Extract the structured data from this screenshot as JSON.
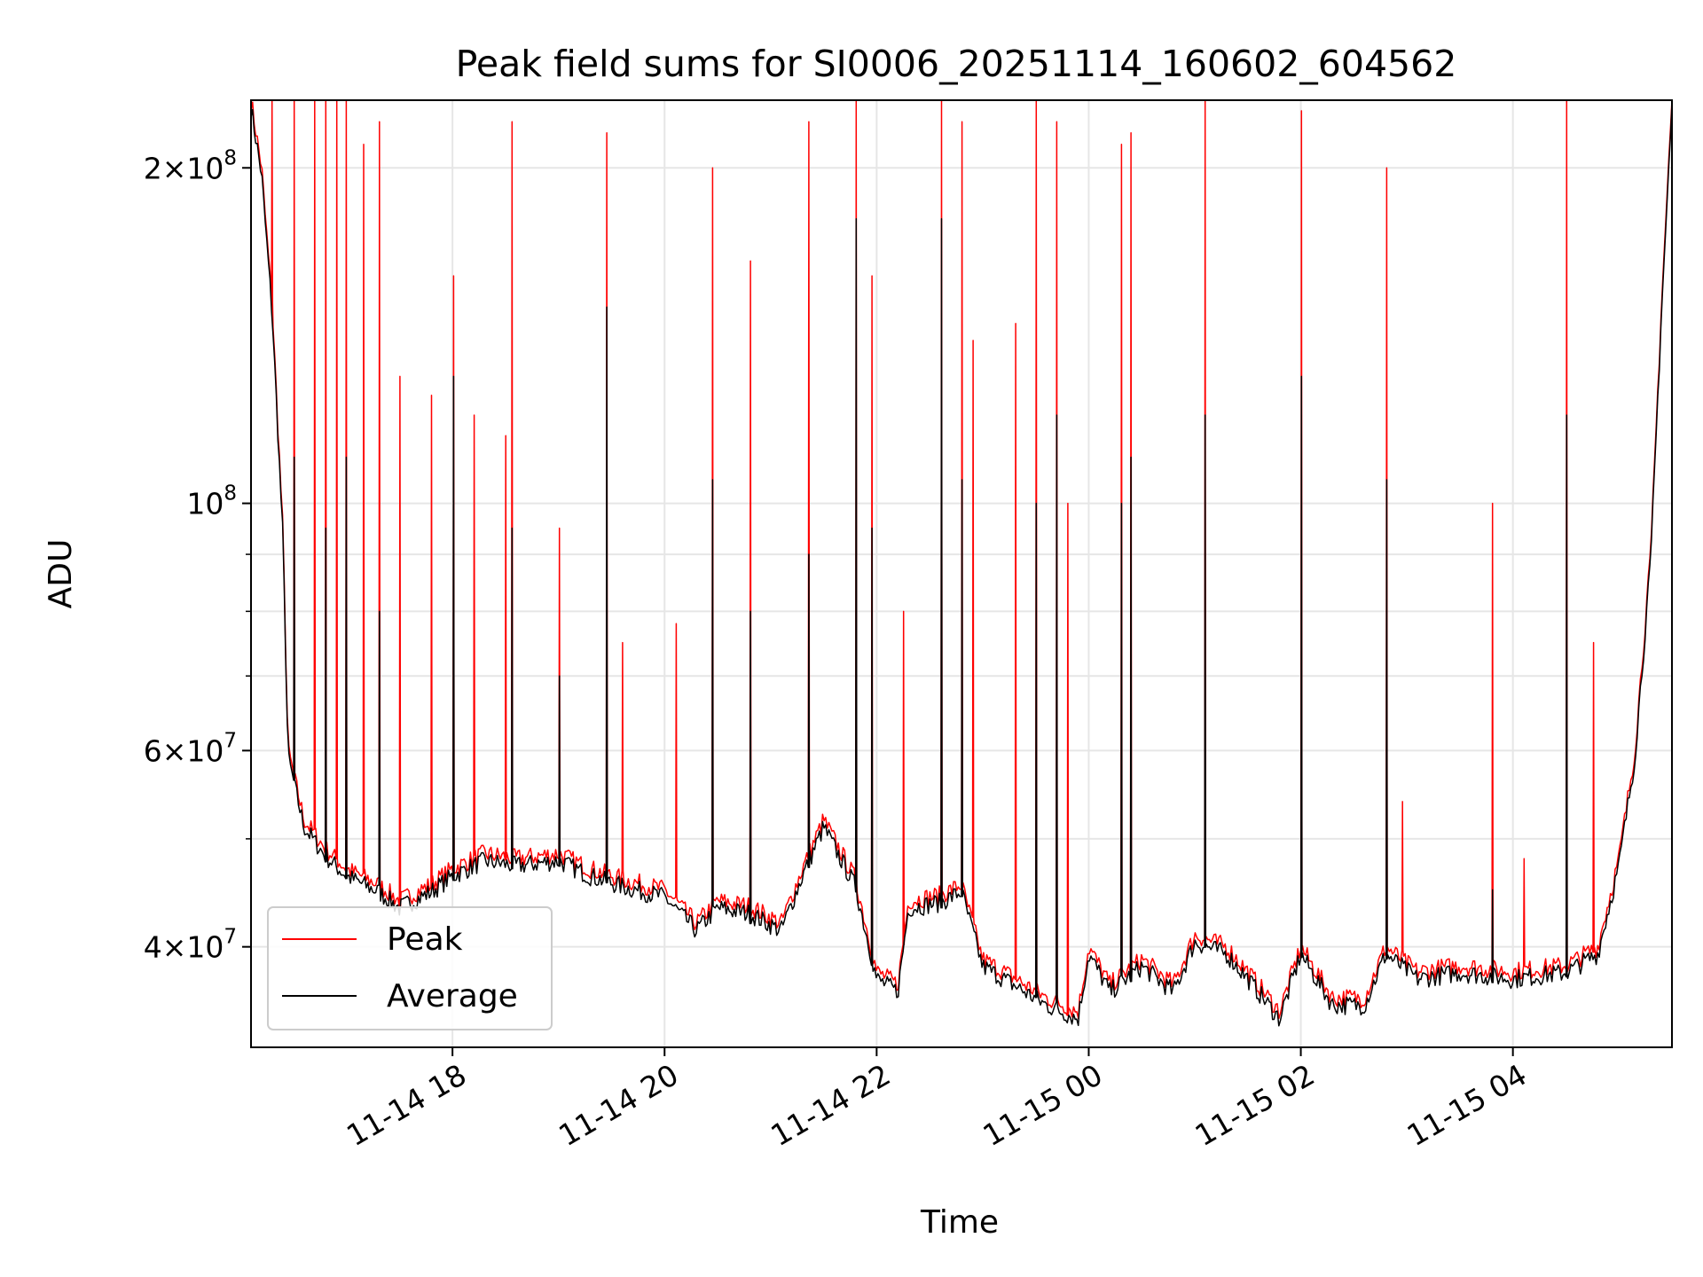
{
  "chart_data": {
    "type": "line",
    "title": "Peak field sums for SI0006_20251114_160602_604562",
    "xlabel": "Time",
    "ylabel": "ADU",
    "yscale": "log",
    "ylim": [
      32500000,
      230000000
    ],
    "xlim_hours": [
      16.1,
      29.5
    ],
    "grid": true,
    "legend_position": "lower-left",
    "x_ticks": [
      {
        "hour": 18,
        "label": "11-14 18"
      },
      {
        "hour": 20,
        "label": "11-14 20"
      },
      {
        "hour": 22,
        "label": "11-14 22"
      },
      {
        "hour": 24,
        "label": "11-15 00"
      },
      {
        "hour": 26,
        "label": "11-15 02"
      },
      {
        "hour": 28,
        "label": "11-15 04"
      }
    ],
    "y_ticks": [
      {
        "value": 40000000,
        "base": "4",
        "exp": "7"
      },
      {
        "value": 60000000,
        "base": "6",
        "exp": "7"
      },
      {
        "value": 100000000,
        "base": "",
        "exp": "8"
      },
      {
        "value": 200000000,
        "base": "2",
        "exp": "8"
      }
    ],
    "series": [
      {
        "name": "Peak",
        "color": "#ff0000",
        "baseline": [
          [
            16.1,
            230000000
          ],
          [
            16.2,
            200000000
          ],
          [
            16.3,
            150000000
          ],
          [
            16.4,
            95000000
          ],
          [
            16.45,
            60000000
          ],
          [
            16.6,
            52000000
          ],
          [
            16.8,
            49000000
          ],
          [
            17.0,
            47000000
          ],
          [
            17.3,
            45500000
          ],
          [
            17.5,
            44000000
          ],
          [
            17.8,
            45500000
          ],
          [
            18.0,
            47000000
          ],
          [
            18.3,
            48500000
          ],
          [
            18.6,
            48000000
          ],
          [
            19.0,
            48500000
          ],
          [
            19.3,
            47000000
          ],
          [
            19.6,
            46000000
          ],
          [
            20.0,
            45000000
          ],
          [
            20.3,
            42000000
          ],
          [
            20.5,
            44000000
          ],
          [
            20.8,
            43500000
          ],
          [
            21.1,
            42000000
          ],
          [
            21.3,
            47000000
          ],
          [
            21.5,
            52000000
          ],
          [
            21.8,
            46000000
          ],
          [
            22.0,
            38000000
          ],
          [
            22.2,
            37000000
          ],
          [
            22.3,
            44000000
          ],
          [
            22.6,
            44500000
          ],
          [
            22.8,
            45500000
          ],
          [
            23.0,
            39000000
          ],
          [
            23.3,
            37500000
          ],
          [
            23.6,
            36000000
          ],
          [
            23.9,
            35000000
          ],
          [
            24.0,
            40000000
          ],
          [
            24.2,
            37000000
          ],
          [
            24.5,
            39000000
          ],
          [
            24.8,
            37000000
          ],
          [
            25.0,
            41000000
          ],
          [
            25.3,
            40000000
          ],
          [
            25.5,
            38000000
          ],
          [
            25.8,
            35000000
          ],
          [
            26.0,
            40000000
          ],
          [
            26.3,
            36000000
          ],
          [
            26.6,
            36000000
          ],
          [
            26.8,
            40000000
          ],
          [
            27.1,
            38000000
          ],
          [
            27.5,
            38500000
          ],
          [
            28.0,
            38000000
          ],
          [
            28.5,
            38500000
          ],
          [
            28.8,
            40000000
          ],
          [
            29.0,
            48000000
          ],
          [
            29.15,
            60000000
          ],
          [
            29.3,
            90000000
          ],
          [
            29.4,
            150000000
          ],
          [
            29.5,
            230000000
          ]
        ],
        "spikes": [
          [
            16.3,
            230000000
          ],
          [
            16.5,
            230000000
          ],
          [
            16.7,
            230000000
          ],
          [
            16.8,
            230000000
          ],
          [
            16.9,
            230000000
          ],
          [
            17.0,
            230000000
          ],
          [
            17.15,
            210000000
          ],
          [
            17.3,
            220000000
          ],
          [
            17.5,
            130000000
          ],
          [
            17.8,
            125000000
          ],
          [
            18.0,
            160000000
          ],
          [
            18.2,
            120000000
          ],
          [
            18.5,
            115000000
          ],
          [
            18.55,
            220000000
          ],
          [
            19.0,
            95000000
          ],
          [
            19.45,
            215000000
          ],
          [
            19.6,
            75000000
          ],
          [
            20.1,
            78000000
          ],
          [
            20.45,
            200000000
          ],
          [
            20.8,
            165000000
          ],
          [
            21.35,
            220000000
          ],
          [
            21.8,
            230000000
          ],
          [
            21.95,
            160000000
          ],
          [
            22.25,
            80000000
          ],
          [
            22.6,
            230000000
          ],
          [
            22.8,
            220000000
          ],
          [
            22.9,
            140000000
          ],
          [
            23.3,
            145000000
          ],
          [
            23.5,
            230000000
          ],
          [
            23.7,
            220000000
          ],
          [
            23.8,
            100000000
          ],
          [
            24.3,
            210000000
          ],
          [
            24.4,
            215000000
          ],
          [
            25.1,
            230000000
          ],
          [
            26.0,
            225000000
          ],
          [
            26.8,
            200000000
          ],
          [
            26.95,
            54000000
          ],
          [
            27.8,
            100000000
          ],
          [
            28.1,
            48000000
          ],
          [
            28.5,
            230000000
          ],
          [
            28.75,
            75000000
          ]
        ]
      },
      {
        "name": "Average",
        "color": "#000000",
        "baseline": [
          [
            16.1,
            230000000
          ],
          [
            16.2,
            200000000
          ],
          [
            16.3,
            150000000
          ],
          [
            16.4,
            95000000
          ],
          [
            16.45,
            60000000
          ],
          [
            16.6,
            52000000
          ],
          [
            16.8,
            49000000
          ],
          [
            17.0,
            47000000
          ],
          [
            17.3,
            45500000
          ],
          [
            17.5,
            44000000
          ],
          [
            17.8,
            45500000
          ],
          [
            18.0,
            47000000
          ],
          [
            18.3,
            48500000
          ],
          [
            18.6,
            48000000
          ],
          [
            19.0,
            48500000
          ],
          [
            19.3,
            47000000
          ],
          [
            19.6,
            46000000
          ],
          [
            20.0,
            45000000
          ],
          [
            20.3,
            42000000
          ],
          [
            20.5,
            44000000
          ],
          [
            20.8,
            43500000
          ],
          [
            21.1,
            42000000
          ],
          [
            21.3,
            47000000
          ],
          [
            21.5,
            52000000
          ],
          [
            21.8,
            46000000
          ],
          [
            22.0,
            38000000
          ],
          [
            22.2,
            37000000
          ],
          [
            22.3,
            44000000
          ],
          [
            22.6,
            44500000
          ],
          [
            22.8,
            45500000
          ],
          [
            23.0,
            39000000
          ],
          [
            23.3,
            37500000
          ],
          [
            23.6,
            36000000
          ],
          [
            23.9,
            35000000
          ],
          [
            24.0,
            40000000
          ],
          [
            24.2,
            37000000
          ],
          [
            24.5,
            39000000
          ],
          [
            24.8,
            37000000
          ],
          [
            25.0,
            41000000
          ],
          [
            25.3,
            40000000
          ],
          [
            25.5,
            38000000
          ],
          [
            25.8,
            35000000
          ],
          [
            26.0,
            40000000
          ],
          [
            26.3,
            36000000
          ],
          [
            26.6,
            36000000
          ],
          [
            26.8,
            40000000
          ],
          [
            27.1,
            38000000
          ],
          [
            27.5,
            38500000
          ],
          [
            28.0,
            38000000
          ],
          [
            28.5,
            38500000
          ],
          [
            28.8,
            40000000
          ],
          [
            29.0,
            48000000
          ],
          [
            29.15,
            60000000
          ],
          [
            29.3,
            90000000
          ],
          [
            29.4,
            150000000
          ],
          [
            29.5,
            230000000
          ]
        ],
        "spikes": [
          [
            16.5,
            110000000
          ],
          [
            16.8,
            95000000
          ],
          [
            17.0,
            110000000
          ],
          [
            17.3,
            80000000
          ],
          [
            18.0,
            130000000
          ],
          [
            18.55,
            95000000
          ],
          [
            19.0,
            70000000
          ],
          [
            19.45,
            150000000
          ],
          [
            20.45,
            105000000
          ],
          [
            20.8,
            80000000
          ],
          [
            21.35,
            90000000
          ],
          [
            21.8,
            180000000
          ],
          [
            21.95,
            95000000
          ],
          [
            22.6,
            180000000
          ],
          [
            22.8,
            105000000
          ],
          [
            23.5,
            100000000
          ],
          [
            23.7,
            120000000
          ],
          [
            24.3,
            100000000
          ],
          [
            24.4,
            110000000
          ],
          [
            25.1,
            120000000
          ],
          [
            26.0,
            130000000
          ],
          [
            26.8,
            105000000
          ],
          [
            27.8,
            45000000
          ],
          [
            28.5,
            120000000
          ]
        ]
      }
    ]
  }
}
